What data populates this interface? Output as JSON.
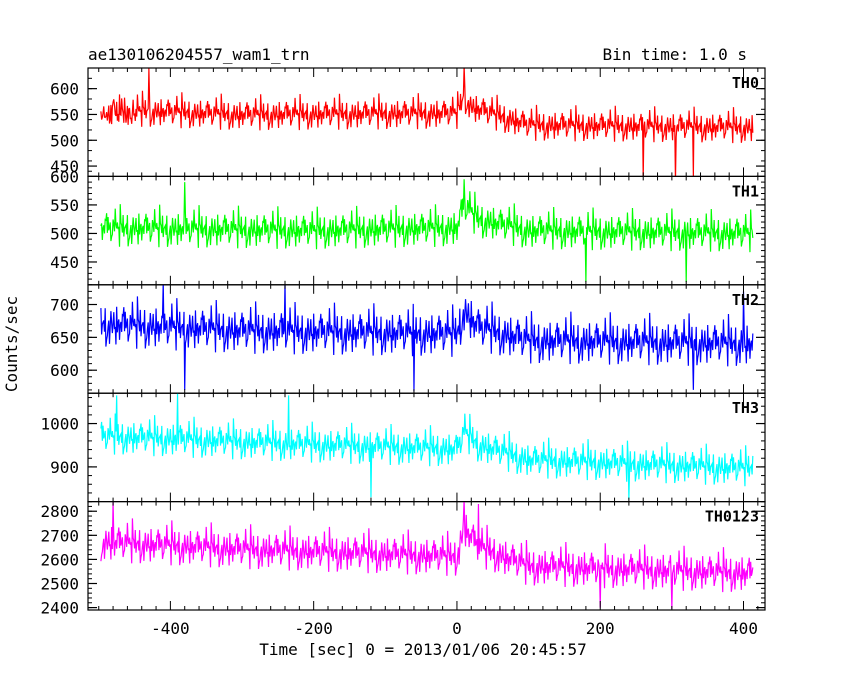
{
  "chart_data": {
    "type": "line",
    "title": "ae130106204557_wam1_trn",
    "subtitle": "Bin time: 1.0 s",
    "xlabel": "Time [sec] 0 = 2013/01/06 20:45:57",
    "ylabel": "Counts/sec",
    "xlim": [
      -515,
      430
    ],
    "x_ticks": [
      -400,
      -200,
      0,
      200,
      400
    ],
    "x_start": -497,
    "x_end": 413,
    "x_step": 1,
    "panels": [
      {
        "name": "TH0",
        "color": "#ff0000",
        "ylim": [
          430,
          640
        ],
        "yticks": [
          450,
          500,
          550,
          600
        ],
        "trend": [
          [
            -497,
            555
          ],
          [
            -300,
            545
          ],
          [
            0,
            548
          ],
          [
            10,
            580
          ],
          [
            20,
            560
          ],
          [
            100,
            525
          ],
          [
            413,
            520
          ]
        ],
        "noise": 28,
        "dips": [
          [
            260,
            425
          ],
          [
            305,
            420
          ],
          [
            330,
            430
          ]
        ],
        "spikes": [
          [
            -430,
            640
          ],
          [
            10,
            645
          ]
        ]
      },
      {
        "name": "TH1",
        "color": "#00ff00",
        "ylim": [
          410,
          600
        ],
        "yticks": [
          450,
          500,
          550,
          600
        ],
        "trend": [
          [
            -497,
            505
          ],
          [
            -200,
            500
          ],
          [
            0,
            505
          ],
          [
            10,
            545
          ],
          [
            30,
            520
          ],
          [
            100,
            500
          ],
          [
            413,
            495
          ]
        ],
        "noise": 30,
        "dips": [
          [
            180,
            415
          ],
          [
            320,
            415
          ]
        ],
        "spikes": [
          [
            -380,
            590
          ],
          [
            10,
            595
          ]
        ]
      },
      {
        "name": "TH2",
        "color": "#0000ff",
        "ylim": [
          565,
          730
        ],
        "yticks": [
          600,
          650,
          700
        ],
        "trend": [
          [
            -497,
            665
          ],
          [
            -300,
            655
          ],
          [
            0,
            650
          ],
          [
            10,
            685
          ],
          [
            30,
            660
          ],
          [
            100,
            640
          ],
          [
            413,
            635
          ]
        ],
        "noise": 32,
        "dips": [
          [
            -380,
            570
          ],
          [
            -60,
            568
          ],
          [
            330,
            570
          ]
        ],
        "spikes": [
          [
            -410,
            735
          ],
          [
            -240,
            735
          ],
          [
            400,
            720
          ]
        ]
      },
      {
        "name": "TH3",
        "color": "#00ffff",
        "ylim": [
          820,
          1070
        ],
        "yticks": [
          900,
          1000
        ],
        "trend": [
          [
            -497,
            965
          ],
          [
            -200,
            945
          ],
          [
            0,
            935
          ],
          [
            10,
            975
          ],
          [
            30,
            945
          ],
          [
            100,
            910
          ],
          [
            413,
            890
          ]
        ],
        "noise": 38,
        "dips": [
          [
            -120,
            830
          ],
          [
            240,
            825
          ]
        ],
        "spikes": [
          [
            -475,
            1065
          ],
          [
            -390,
            1070
          ],
          [
            -235,
            1065
          ]
        ]
      },
      {
        "name": "TH0123",
        "color": "#ff00ff",
        "ylim": [
          2390,
          2840
        ],
        "yticks": [
          2400,
          2500,
          2600,
          2700,
          2800
        ],
        "trend": [
          [
            -497,
            2660
          ],
          [
            -300,
            2630
          ],
          [
            0,
            2600
          ],
          [
            10,
            2720
          ],
          [
            30,
            2640
          ],
          [
            100,
            2560
          ],
          [
            413,
            2530
          ]
        ],
        "noise": 75,
        "dips": [
          [
            200,
            2400
          ],
          [
            300,
            2395
          ]
        ],
        "spikes": [
          [
            -480,
            2845
          ],
          [
            10,
            2850
          ],
          [
            30,
            2830
          ]
        ]
      }
    ]
  }
}
